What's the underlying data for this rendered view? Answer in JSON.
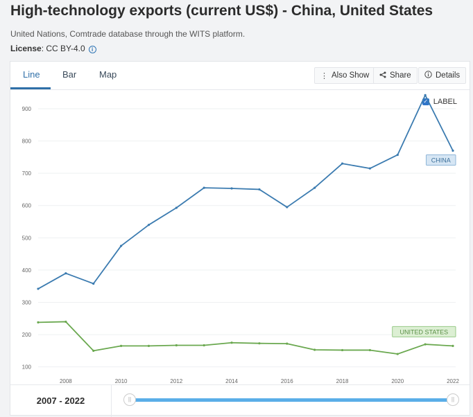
{
  "header": {
    "title": "High-technology exports (current US$) - China, United States",
    "source": "United Nations, Comtrade database through the WITS platform.",
    "license_label": "License",
    "license_value": ": CC BY-4.0"
  },
  "tabs": [
    {
      "label": "Line",
      "active": true
    },
    {
      "label": "Bar",
      "active": false
    },
    {
      "label": "Map",
      "active": false
    }
  ],
  "toolbar": {
    "also_show": "Also Show",
    "share": "Share",
    "details": "Details"
  },
  "label_toggle": {
    "label": "LABEL",
    "checked": true
  },
  "range": {
    "text": "2007 - 2022"
  },
  "chart_data": {
    "type": "line",
    "x": [
      2007,
      2008,
      2009,
      2010,
      2011,
      2012,
      2013,
      2014,
      2015,
      2016,
      2017,
      2018,
      2019,
      2020,
      2021,
      2022
    ],
    "xticks": [
      2008,
      2010,
      2012,
      2014,
      2016,
      2018,
      2020,
      2022
    ],
    "yticks": [
      100,
      200,
      300,
      400,
      500,
      600,
      700,
      800,
      900
    ],
    "ylim": [
      80,
      960
    ],
    "xlim": [
      2007,
      2022
    ],
    "grid": true,
    "series": [
      {
        "name": "CHINA",
        "color": "#3b7bb0",
        "label_bg": "#d6e6f4",
        "label_border": "#8fb6d8",
        "label_color": "#3b6f9a",
        "values": [
          342,
          390,
          358,
          475,
          540,
          593,
          655,
          653,
          650,
          595,
          655,
          730,
          715,
          757,
          942,
          770
        ]
      },
      {
        "name": "UNITED STATES",
        "color": "#6aa84f",
        "label_bg": "#dcefd3",
        "label_border": "#98c987",
        "label_color": "#5a8f46",
        "values": [
          238,
          240,
          150,
          165,
          165,
          167,
          167,
          175,
          173,
          172,
          153,
          152,
          152,
          140,
          170,
          165
        ]
      }
    ]
  }
}
